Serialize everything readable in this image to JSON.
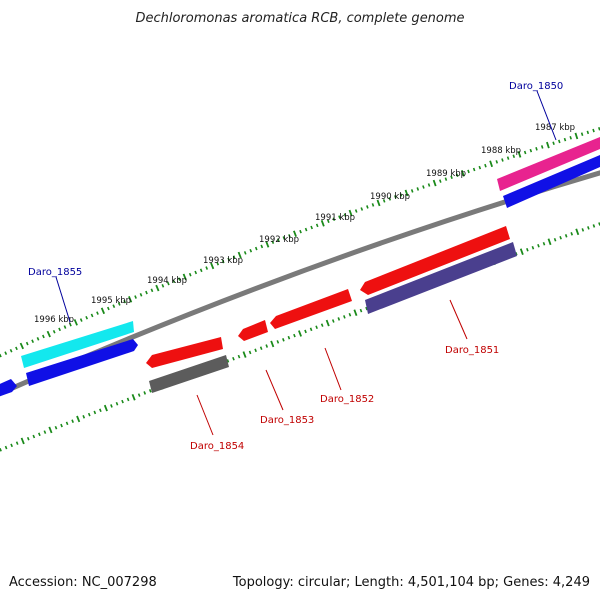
{
  "title": "Dechloromonas aromatica RCB, complete genome",
  "footer": {
    "accession": "Accession: NC_007298",
    "summary": "Topology: circular; Length: 4,501,104 bp; Genes: 4,249"
  },
  "colors": {
    "backbone": "#7a7a7a",
    "tick": "#1a8a1a",
    "label_forward": "#00009c",
    "label_reverse": "#c00000",
    "cyan": "#13e8ee",
    "magenta": "#e8238f",
    "blue": "#1010e6",
    "red": "#ee1010",
    "gray": "#5c5c5c",
    "purple": "#4a3f8e"
  },
  "ticks": [
    {
      "label": "1987 kbp"
    },
    {
      "label": "1988 kbp"
    },
    {
      "label": "1989 kbp"
    },
    {
      "label": "1990 kbp"
    },
    {
      "label": "1991 kbp"
    },
    {
      "label": "1992 kbp"
    },
    {
      "label": "1993 kbp"
    },
    {
      "label": "1994 kbp"
    },
    {
      "label": "1995 kbp"
    },
    {
      "label": "1996 kbp"
    }
  ],
  "gene_labels": [
    {
      "name": "Daro_1850",
      "strand": "forward"
    },
    {
      "name": "Daro_1851",
      "strand": "reverse"
    },
    {
      "name": "Daro_1852",
      "strand": "reverse"
    },
    {
      "name": "Daro_1853",
      "strand": "reverse"
    },
    {
      "name": "Daro_1854",
      "strand": "reverse"
    },
    {
      "name": "Daro_1855",
      "strand": "forward"
    }
  ]
}
